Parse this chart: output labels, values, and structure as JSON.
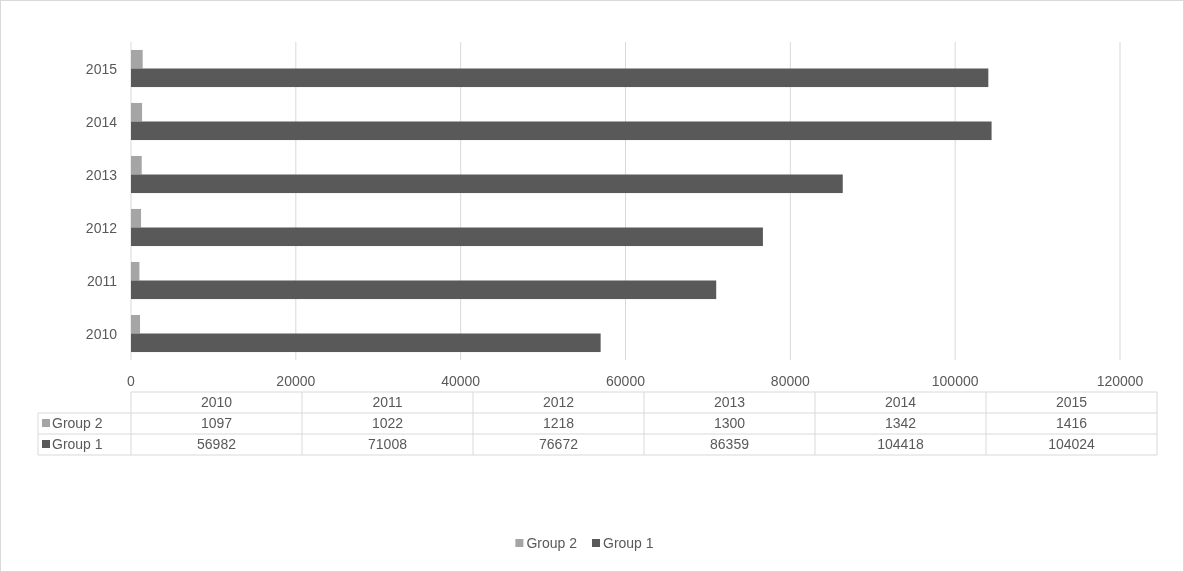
{
  "chart_data": {
    "type": "bar",
    "orientation": "horizontal",
    "categories": [
      "2015",
      "2014",
      "2013",
      "2012",
      "2011",
      "2010"
    ],
    "series": [
      {
        "name": "Group 2",
        "color": "#a5a5a5",
        "values": [
          1416,
          1342,
          1300,
          1218,
          1022,
          1097
        ]
      },
      {
        "name": "Group 1",
        "color": "#595959",
        "values": [
          104024,
          104418,
          86359,
          76672,
          71008,
          56982
        ]
      }
    ],
    "xlim": [
      0,
      120000
    ],
    "xticks": [
      0,
      20000,
      40000,
      60000,
      80000,
      100000,
      120000
    ],
    "grid": "x",
    "legend": "bottom",
    "annotations": [
      "1097",
      "1022",
      "1218",
      "1300",
      "1342",
      "1416",
      "56982",
      "71008",
      "76672",
      "86359",
      "104418",
      "104024"
    ]
  }
}
